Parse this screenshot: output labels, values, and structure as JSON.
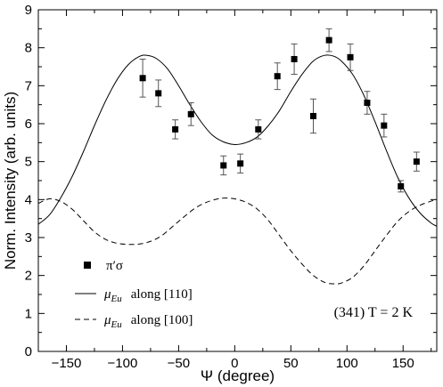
{
  "chart_data": {
    "type": "line",
    "xlabel": "Ψ  (degree)",
    "ylabel": "Norm. Intensity (arb. units)",
    "xlim": [
      -175,
      180
    ],
    "ylim": [
      0,
      9
    ],
    "xticks": [
      -150,
      -100,
      -50,
      0,
      50,
      100,
      150
    ],
    "yticks": [
      0,
      1,
      2,
      3,
      4,
      5,
      6,
      7,
      8,
      9
    ],
    "grid": false,
    "legend_position": "bottom-left",
    "annotation": "(341)  T =  2 K",
    "series": [
      {
        "name": "π′σ",
        "kind": "scatter",
        "marker": "square",
        "points": [
          {
            "x": -82,
            "y": 7.2,
            "err": 0.5
          },
          {
            "x": -68,
            "y": 6.8,
            "err": 0.35
          },
          {
            "x": -53,
            "y": 5.85,
            "err": 0.25
          },
          {
            "x": -39,
            "y": 6.25,
            "err": 0.3
          },
          {
            "x": -10,
            "y": 4.9,
            "err": 0.25
          },
          {
            "x": 5,
            "y": 4.95,
            "err": 0.25
          },
          {
            "x": 21,
            "y": 5.85,
            "err": 0.25
          },
          {
            "x": 38,
            "y": 7.25,
            "err": 0.35
          },
          {
            "x": 53,
            "y": 7.7,
            "err": 0.4
          },
          {
            "x": 70,
            "y": 6.2,
            "err": 0.45
          },
          {
            "x": 84,
            "y": 8.2,
            "err": 0.3
          },
          {
            "x": 103,
            "y": 7.75,
            "err": 0.35
          },
          {
            "x": 118,
            "y": 6.55,
            "err": 0.3
          },
          {
            "x": 133,
            "y": 5.95,
            "err": 0.3
          },
          {
            "x": 148,
            "y": 4.35,
            "err": 0.15
          },
          {
            "x": 162,
            "y": 5.0,
            "err": 0.25
          }
        ]
      },
      {
        "name": "μ_Eu along [110]",
        "legend_symbol": "μ",
        "legend_subscript": "Eu",
        "legend_suffix": "along [110]",
        "kind": "line",
        "style": "solid",
        "points": [
          [
            -175,
            3.35
          ],
          [
            -165,
            3.6
          ],
          [
            -155,
            4.05
          ],
          [
            -145,
            4.6
          ],
          [
            -135,
            5.25
          ],
          [
            -125,
            5.95
          ],
          [
            -115,
            6.6
          ],
          [
            -105,
            7.15
          ],
          [
            -95,
            7.55
          ],
          [
            -85,
            7.77
          ],
          [
            -78,
            7.8
          ],
          [
            -70,
            7.72
          ],
          [
            -60,
            7.45
          ],
          [
            -50,
            7.0
          ],
          [
            -40,
            6.5
          ],
          [
            -30,
            6.05
          ],
          [
            -20,
            5.7
          ],
          [
            -10,
            5.52
          ],
          [
            0,
            5.45
          ],
          [
            10,
            5.5
          ],
          [
            20,
            5.65
          ],
          [
            30,
            5.95
          ],
          [
            40,
            6.35
          ],
          [
            50,
            6.85
          ],
          [
            60,
            7.3
          ],
          [
            70,
            7.65
          ],
          [
            80,
            7.8
          ],
          [
            88,
            7.78
          ],
          [
            95,
            7.65
          ],
          [
            105,
            7.3
          ],
          [
            115,
            6.75
          ],
          [
            125,
            6.05
          ],
          [
            135,
            5.3
          ],
          [
            145,
            4.6
          ],
          [
            155,
            4.05
          ],
          [
            165,
            3.65
          ],
          [
            175,
            3.38
          ],
          [
            180,
            3.3
          ]
        ]
      },
      {
        "name": "μ_Eu along [100]",
        "legend_symbol": "μ",
        "legend_subscript": "Eu",
        "legend_suffix": "along [100]",
        "kind": "line",
        "style": "dashed",
        "points": [
          [
            -175,
            3.9
          ],
          [
            -165,
            4.02
          ],
          [
            -155,
            3.95
          ],
          [
            -145,
            3.75
          ],
          [
            -135,
            3.45
          ],
          [
            -125,
            3.15
          ],
          [
            -115,
            2.95
          ],
          [
            -105,
            2.85
          ],
          [
            -95,
            2.82
          ],
          [
            -85,
            2.83
          ],
          [
            -75,
            2.9
          ],
          [
            -65,
            3.05
          ],
          [
            -55,
            3.3
          ],
          [
            -45,
            3.55
          ],
          [
            -35,
            3.78
          ],
          [
            -25,
            3.93
          ],
          [
            -15,
            4.02
          ],
          [
            -8,
            4.04
          ],
          [
            0,
            4.02
          ],
          [
            10,
            3.93
          ],
          [
            20,
            3.75
          ],
          [
            30,
            3.45
          ],
          [
            40,
            3.05
          ],
          [
            50,
            2.65
          ],
          [
            60,
            2.3
          ],
          [
            70,
            2.0
          ],
          [
            80,
            1.82
          ],
          [
            88,
            1.78
          ],
          [
            95,
            1.8
          ],
          [
            105,
            1.95
          ],
          [
            115,
            2.25
          ],
          [
            125,
            2.65
          ],
          [
            135,
            3.05
          ],
          [
            145,
            3.42
          ],
          [
            155,
            3.68
          ],
          [
            165,
            3.85
          ],
          [
            175,
            3.96
          ],
          [
            180,
            4.0
          ]
        ]
      }
    ]
  }
}
